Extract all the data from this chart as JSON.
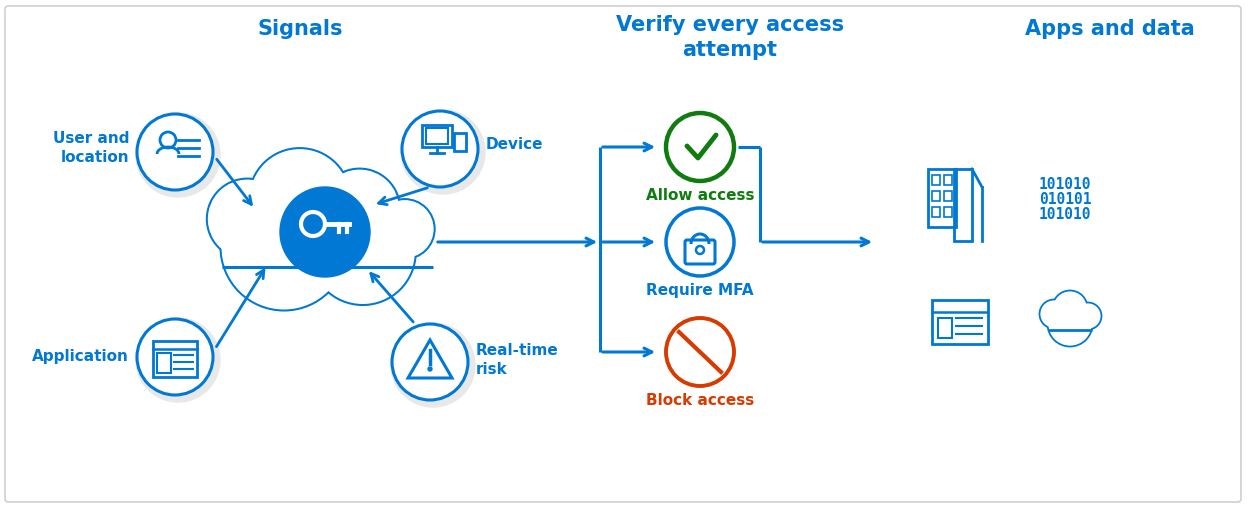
{
  "background_color": "#ffffff",
  "border_color": "#d0d0d0",
  "blue": "#0078d4",
  "green": "#107c10",
  "orange_red": "#d83b01",
  "shadow_color": "#e8e8e8",
  "title_signals": "Signals",
  "title_verify": "Verify every access\nattempt",
  "title_apps": "Apps and data",
  "label_user": "User and\nlocation",
  "label_device": "Device",
  "label_application": "Application",
  "label_risk": "Real-time\nrisk",
  "label_allow": "Allow access",
  "label_mfa": "Require MFA",
  "label_block": "Block access",
  "title_fontsize": 14,
  "label_fontsize": 11,
  "binary_line1": "101010",
  "binary_line2": "010101",
  "binary_line3": "101010"
}
